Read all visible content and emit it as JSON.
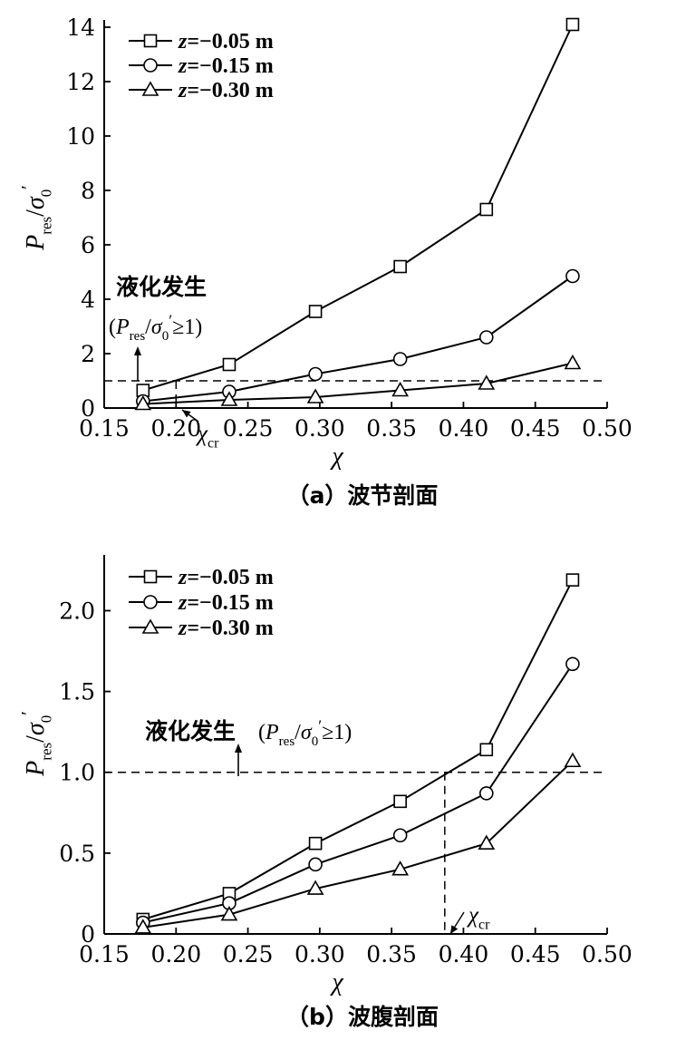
{
  "chart_data": [
    {
      "type": "line",
      "caption": "（a）波节剖面",
      "xlabel": "χ",
      "ylabel": "P_res/σ0′",
      "xlim": [
        0.15,
        0.5
      ],
      "ylim": [
        0,
        14
      ],
      "xticks": [
        "0.15",
        "0.20",
        "0.25",
        "0.30",
        "0.35",
        "0.40",
        "0.45",
        "0.50"
      ],
      "yticks": [
        "0",
        "2",
        "4",
        "6",
        "8",
        "10",
        "12",
        "14"
      ],
      "x": [
        0.177,
        0.237,
        0.297,
        0.356,
        0.416,
        0.476
      ],
      "series": [
        {
          "name": "z=−0.05 m",
          "marker": "square",
          "values": [
            0.65,
            1.6,
            3.55,
            5.2,
            7.3,
            14.1
          ]
        },
        {
          "name": "z=−0.15 m",
          "marker": "circle",
          "values": [
            0.25,
            0.6,
            1.25,
            1.8,
            2.6,
            4.85
          ]
        },
        {
          "name": "z=−0.30 m",
          "marker": "triangle",
          "values": [
            0.15,
            0.3,
            0.4,
            0.65,
            0.9,
            1.65
          ]
        }
      ],
      "threshold": 1.0,
      "critical_x": 0.2,
      "annotation": {
        "title": "液化发生",
        "condition": "(P_res/σ0′≥1)",
        "critical_label": "χcr"
      }
    },
    {
      "type": "line",
      "caption": "（b）波腹剖面",
      "xlabel": "χ",
      "ylabel": "P_res/σ0′",
      "xlim": [
        0.15,
        0.5
      ],
      "ylim": [
        0,
        2.3
      ],
      "xticks": [
        "0.15",
        "0.20",
        "0.25",
        "0.30",
        "0.35",
        "0.40",
        "0.45",
        "0.50"
      ],
      "yticks": [
        "0",
        "0.5",
        "1.0",
        "1.5",
        "2.0"
      ],
      "x": [
        0.177,
        0.237,
        0.297,
        0.356,
        0.416,
        0.476
      ],
      "series": [
        {
          "name": "z=−0.05 m",
          "marker": "square",
          "values": [
            0.09,
            0.25,
            0.56,
            0.82,
            1.14,
            2.19
          ]
        },
        {
          "name": "z=−0.15 m",
          "marker": "circle",
          "values": [
            0.07,
            0.19,
            0.43,
            0.61,
            0.87,
            1.67
          ]
        },
        {
          "name": "z=−0.30 m",
          "marker": "triangle",
          "values": [
            0.04,
            0.12,
            0.28,
            0.4,
            0.56,
            1.07
          ]
        }
      ],
      "threshold": 1.0,
      "critical_x": 0.387,
      "annotation": {
        "title": "液化发生",
        "condition": "(P_res/σ0′≥1)",
        "critical_label": "χcr"
      }
    }
  ]
}
